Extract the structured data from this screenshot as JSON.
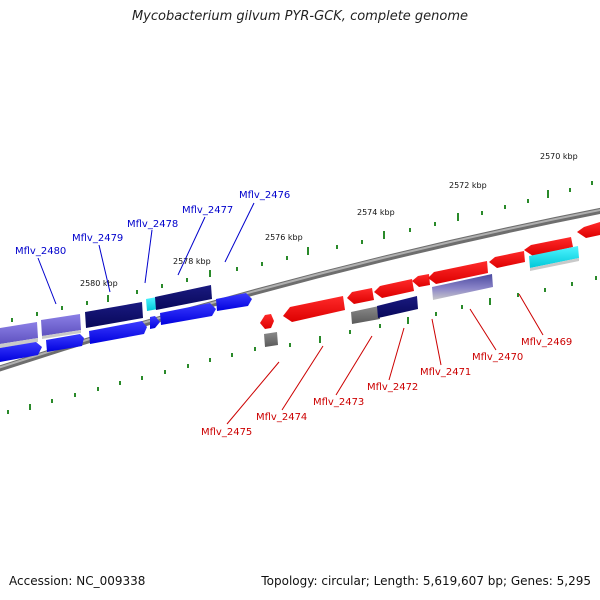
{
  "title": "Mycobacterium gilvum PYR-GCK, complete genome",
  "accession": "Accession: NC_009338",
  "summary": "Topology: circular; Length: 5,619,607 bp; Genes: 5,295",
  "colors": {
    "forward_gene": "#0000ff",
    "forward_dark": "#0a0a6e",
    "forward_light": "#7b70d6",
    "reverse_gene": "#ff0000",
    "cyan_gene": "#00e5ef",
    "grey_gene": "#777777",
    "backbone": "#888888",
    "tick_green": "#2a8a2a",
    "label_blue": "#0000cc",
    "label_red": "#cc0000"
  },
  "scale_labels": [
    "2570 kbp",
    "2572 kbp",
    "2574 kbp",
    "2576 kbp",
    "2578 kbp",
    "2580 kbp"
  ],
  "gene_labels_forward": [
    "Mflv_2476",
    "Mflv_2477",
    "Mflv_2478",
    "Mflv_2479",
    "Mflv_2480"
  ],
  "gene_labels_reverse": [
    "Mflv_2469",
    "Mflv_2470",
    "Mflv_2471",
    "Mflv_2472",
    "Mflv_2473",
    "Mflv_2474",
    "Mflv_2475"
  ]
}
